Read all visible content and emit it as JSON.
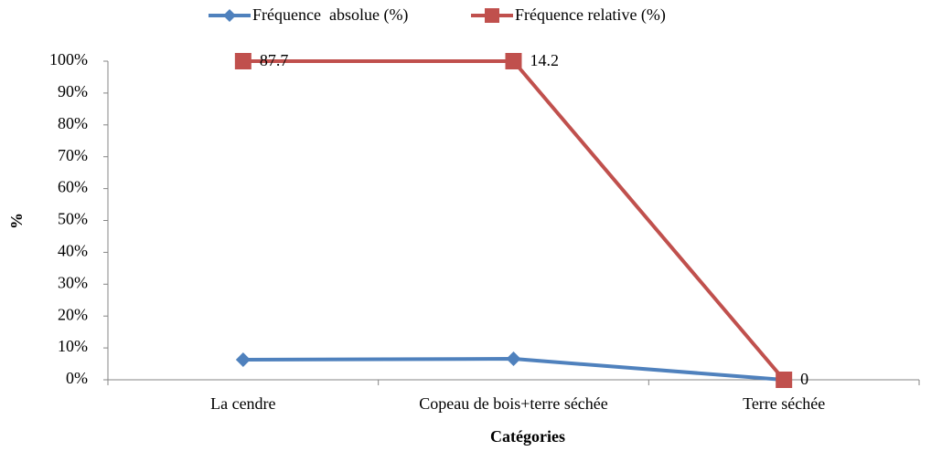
{
  "chart_data": {
    "type": "line",
    "stacking": "percent",
    "categories": [
      "La cendre",
      "Copeau de bois+terre séchée",
      "Terre séchée"
    ],
    "series": [
      {
        "name": "Fréquence  absolue (%)",
        "color": "#4f81bd",
        "marker": "diamond",
        "values": [
          5.9,
          1.0,
          0
        ]
      },
      {
        "name": "Fréquence relative (%)",
        "color": "#c0504d",
        "marker": "square",
        "values": [
          87.7,
          14.2,
          0
        ],
        "data_labels": true
      }
    ],
    "ylim": [
      0,
      100
    ],
    "yticks": [
      {
        "value": 0,
        "label": "0%"
      },
      {
        "value": 10,
        "label": "10%"
      },
      {
        "value": 20,
        "label": "20%"
      },
      {
        "value": 30,
        "label": "30%"
      },
      {
        "value": 40,
        "label": "40%"
      },
      {
        "value": 50,
        "label": "50%"
      },
      {
        "value": 60,
        "label": "60%"
      },
      {
        "value": 70,
        "label": "70%"
      },
      {
        "value": 80,
        "label": "80%"
      },
      {
        "value": 90,
        "label": "90%"
      },
      {
        "value": 100,
        "label": "100%"
      }
    ],
    "y_label": "%",
    "x_label": "Catégories",
    "legend": "top",
    "grid": false
  }
}
